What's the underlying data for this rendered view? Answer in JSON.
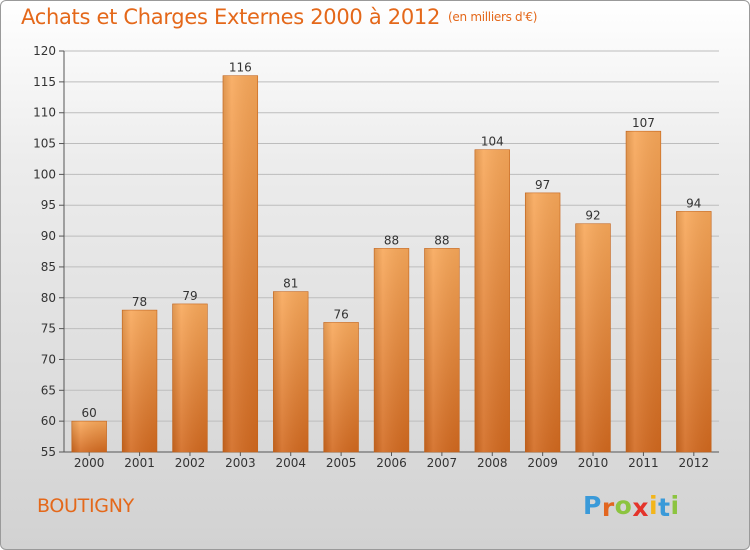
{
  "chart_data": {
    "type": "bar",
    "title": "Achats et Charges Externes 2000 à 2012",
    "subtitle": "(en milliers d'€)",
    "categories": [
      "2000",
      "2001",
      "2002",
      "2003",
      "2004",
      "2005",
      "2006",
      "2007",
      "2008",
      "2009",
      "2010",
      "2011",
      "2012"
    ],
    "values": [
      60,
      78,
      79,
      116,
      81,
      76,
      88,
      88,
      104,
      97,
      92,
      107,
      94
    ],
    "ylim": [
      55,
      120
    ],
    "yticks": [
      55,
      60,
      65,
      70,
      75,
      80,
      85,
      90,
      95,
      100,
      105,
      110,
      115,
      120
    ],
    "grid": true,
    "colors": {
      "bar_top": "#f8a85a",
      "bar_bottom": "#d2691f",
      "title": "#e4681a"
    }
  },
  "place_name": "BOUTIGNY",
  "logo": {
    "letters": [
      "P",
      "r",
      "o",
      "x",
      "i",
      "t",
      "i"
    ],
    "colors": [
      "#3a9ad9",
      "#e2661f",
      "#8cc43f",
      "#e4342b",
      "#f3b51a",
      "#3a9ad9",
      "#8cc43f"
    ]
  }
}
